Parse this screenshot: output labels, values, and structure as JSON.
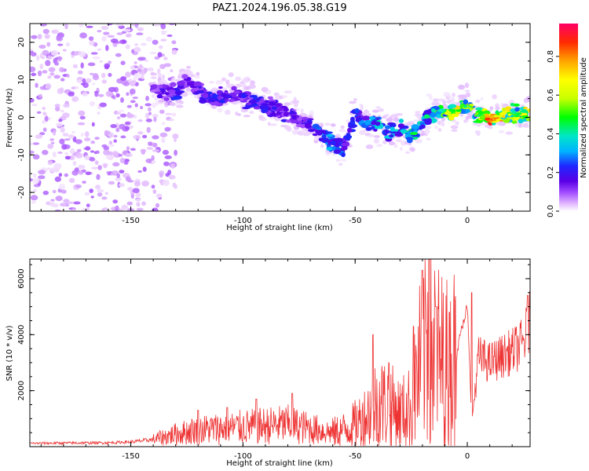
{
  "title": "PAZ1.2024.196.05.38.G19",
  "chart_data": [
    {
      "type": "heatmap",
      "xlabel": "Height of straight line (km)",
      "ylabel": "Frequency (Hz)",
      "xlim": [
        -195,
        28
      ],
      "ylim": [
        -25,
        25
      ],
      "xticks": [
        -150,
        -100,
        -50,
        0
      ],
      "yticks": [
        -20,
        -10,
        0,
        10,
        20
      ],
      "colorbar": {
        "label": "Normalized spectral amplitude",
        "range": [
          0,
          0.97
        ],
        "ticks": [
          0.0,
          0.2,
          0.4,
          0.6,
          0.8
        ],
        "colormap": [
          "#ffffff",
          "#e2b8ff",
          "#a24cff",
          "#5a00e6",
          "#1f26ff",
          "#00b4ff",
          "#00e6c8",
          "#00ff00",
          "#c8ff00",
          "#ffff00",
          "#ffa500",
          "#ff2a00",
          "#ff0066"
        ]
      },
      "ridge": [
        {
          "x": -140,
          "y": 8,
          "a": 0.2
        },
        {
          "x": -130,
          "y": 6,
          "a": 0.3
        },
        {
          "x": -125,
          "y": 10,
          "a": 0.25
        },
        {
          "x": -115,
          "y": 5,
          "a": 0.3
        },
        {
          "x": -105,
          "y": 6,
          "a": 0.28
        },
        {
          "x": -95,
          "y": 4,
          "a": 0.3
        },
        {
          "x": -85,
          "y": 2,
          "a": 0.28
        },
        {
          "x": -75,
          "y": 0,
          "a": 0.25
        },
        {
          "x": -65,
          "y": -4,
          "a": 0.35
        },
        {
          "x": -60,
          "y": -7,
          "a": 0.4
        },
        {
          "x": -55,
          "y": -8,
          "a": 0.35
        },
        {
          "x": -50,
          "y": 1,
          "a": 0.3
        },
        {
          "x": -45,
          "y": -2,
          "a": 0.4
        },
        {
          "x": -40,
          "y": -1,
          "a": 0.45
        },
        {
          "x": -35,
          "y": -4,
          "a": 0.4
        },
        {
          "x": -30,
          "y": -3,
          "a": 0.45
        },
        {
          "x": -25,
          "y": -5,
          "a": 0.55
        },
        {
          "x": -20,
          "y": -2,
          "a": 0.45
        },
        {
          "x": -15,
          "y": 1,
          "a": 0.5
        },
        {
          "x": -10,
          "y": 1.5,
          "a": 0.6
        },
        {
          "x": -5,
          "y": 1.5,
          "a": 0.75
        },
        {
          "x": 0,
          "y": 3,
          "a": 0.6
        },
        {
          "x": 5,
          "y": 0.5,
          "a": 0.6
        },
        {
          "x": 10,
          "y": 0,
          "a": 0.9
        },
        {
          "x": 15,
          "y": 0.5,
          "a": 0.85
        },
        {
          "x": 20,
          "y": 1,
          "a": 0.6
        },
        {
          "x": 25,
          "y": 0.8,
          "a": 0.7
        }
      ]
    },
    {
      "type": "line",
      "xlabel": "Height of straight line (km)",
      "ylabel": "SNR (10 * v/v)",
      "xlim": [
        -195,
        28
      ],
      "ylim": [
        0,
        6700
      ],
      "xticks": [
        -150,
        -100,
        -50,
        0
      ],
      "yticks": [
        2000,
        4000,
        6000
      ],
      "color": "#ee3333",
      "envelope": {
        "x": [
          -195,
          -180,
          -160,
          -150,
          -140,
          -130,
          -120,
          -110,
          -100,
          -90,
          -80,
          -70,
          -60,
          -55,
          -50,
          -45,
          -40,
          -35,
          -30,
          -25,
          -22,
          -20,
          -18,
          -15,
          -10,
          -5,
          -2,
          0,
          2,
          5,
          10,
          15,
          20,
          25,
          28
        ],
        "y": [
          120,
          130,
          140,
          170,
          250,
          450,
          600,
          650,
          700,
          750,
          800,
          650,
          500,
          600,
          800,
          1100,
          1600,
          1500,
          1200,
          1400,
          2600,
          3200,
          4200,
          3400,
          2900,
          3200,
          4400,
          5000,
          900,
          3200,
          3000,
          3200,
          3400,
          3700,
          4500
        ]
      },
      "peaks": [
        {
          "x": -120,
          "y": 1300
        },
        {
          "x": -107,
          "y": 1400
        },
        {
          "x": -94,
          "y": 1700
        },
        {
          "x": -78,
          "y": 1900
        },
        {
          "x": -42,
          "y": 4000
        },
        {
          "x": -35,
          "y": 3000
        },
        {
          "x": -24,
          "y": 4300
        },
        {
          "x": -20,
          "y": 6300
        },
        {
          "x": -17,
          "y": 6700
        },
        {
          "x": -14,
          "y": 5000
        },
        {
          "x": -8,
          "y": 4800
        },
        {
          "x": 2,
          "y": 5500
        },
        {
          "x": 27,
          "y": 5400
        }
      ]
    }
  ]
}
